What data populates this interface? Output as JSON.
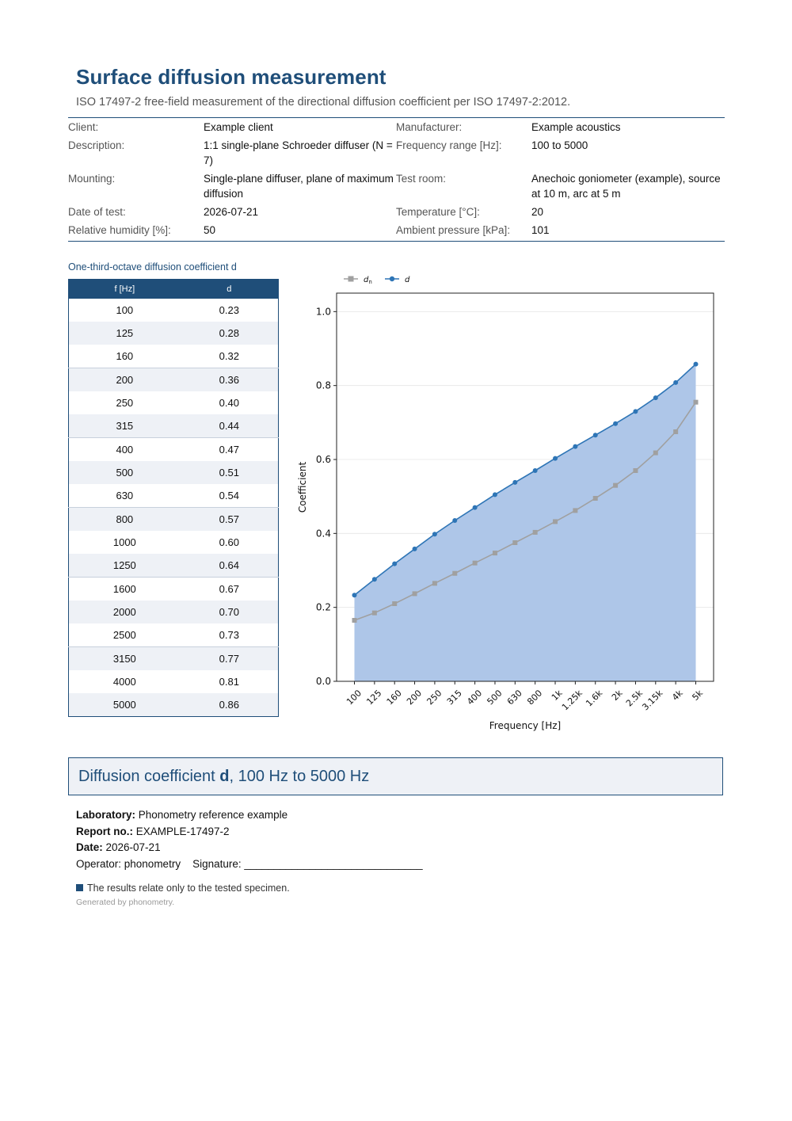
{
  "header": {
    "title": "Surface diffusion measurement",
    "subtitle": "ISO 17497-2 free-field measurement of the directional diffusion coefficient per ISO 17497-2:2012."
  },
  "meta": [
    {
      "k1": "Client:",
      "v1": "Example client",
      "k2": "Manufacturer:",
      "v2": "Example acoustics"
    },
    {
      "k1": "Description:",
      "v1": "1:1 single-plane Schroeder diffuser (N = 7)",
      "k2": "Frequency range [Hz]:",
      "v2": "100 to 5000"
    },
    {
      "k1": "Mounting:",
      "v1": "Single-plane diffuser, plane of maximum diffusion",
      "k2": "Test room:",
      "v2": "Anechoic goniometer (example), source at 10 m, arc at 5 m"
    },
    {
      "k1": "Date of test:",
      "v1": "2026-07-21",
      "k2": "Temperature [°C]:",
      "v2": "20"
    },
    {
      "k1": "Relative humidity [%]:",
      "v1": "50",
      "k2": "Ambient pressure [kPa]:",
      "v2": "101"
    }
  ],
  "table": {
    "caption": "One-third-octave diffusion coefficient d",
    "col_f": "f [Hz]",
    "col_d": "d",
    "rows": [
      {
        "f": "100",
        "d": "0.23"
      },
      {
        "f": "125",
        "d": "0.28"
      },
      {
        "f": "160",
        "d": "0.32"
      },
      {
        "f": "200",
        "d": "0.36"
      },
      {
        "f": "250",
        "d": "0.40"
      },
      {
        "f": "315",
        "d": "0.44"
      },
      {
        "f": "400",
        "d": "0.47"
      },
      {
        "f": "500",
        "d": "0.51"
      },
      {
        "f": "630",
        "d": "0.54"
      },
      {
        "f": "800",
        "d": "0.57"
      },
      {
        "f": "1000",
        "d": "0.60"
      },
      {
        "f": "1250",
        "d": "0.64"
      },
      {
        "f": "1600",
        "d": "0.67"
      },
      {
        "f": "2000",
        "d": "0.70"
      },
      {
        "f": "2500",
        "d": "0.73"
      },
      {
        "f": "3150",
        "d": "0.77"
      },
      {
        "f": "4000",
        "d": "0.81"
      },
      {
        "f": "5000",
        "d": "0.86"
      }
    ]
  },
  "chart_data": {
    "type": "line",
    "x": [
      100,
      125,
      160,
      200,
      250,
      315,
      400,
      500,
      630,
      800,
      1000,
      1250,
      1600,
      2000,
      2500,
      3150,
      4000,
      5000
    ],
    "tick_labels": [
      "100",
      "125",
      "160",
      "200",
      "250",
      "315",
      "400",
      "500",
      "630",
      "800",
      "1k",
      "1.25k",
      "1.6k",
      "2k",
      "2.5k",
      "3.15k",
      "4k",
      "5k"
    ],
    "series": [
      {
        "name": "dn",
        "color": "#a0a0a0",
        "marker": "square",
        "values": [
          0.165,
          0.185,
          0.21,
          0.237,
          0.265,
          0.292,
          0.32,
          0.347,
          0.375,
          0.403,
          0.432,
          0.462,
          0.495,
          0.53,
          0.57,
          0.618,
          0.675,
          0.755
        ]
      },
      {
        "name": "d",
        "color": "#2e75b6",
        "marker": "circle",
        "values": [
          0.233,
          0.276,
          0.318,
          0.358,
          0.398,
          0.435,
          0.47,
          0.505,
          0.538,
          0.57,
          0.603,
          0.635,
          0.666,
          0.697,
          0.73,
          0.767,
          0.808,
          0.858
        ]
      }
    ],
    "area_fill": "#aec6e8",
    "xlabel": "Frequency [Hz]",
    "ylabel": "Coefficient",
    "ylim": [
      0,
      1.05
    ],
    "yticks": [
      "0.0",
      "0.2",
      "0.4",
      "0.6",
      "0.8",
      "1.0"
    ],
    "grid": true,
    "legend_position": "top-left"
  },
  "result": {
    "prefix": "Diffusion coefficient ",
    "symbol": "d",
    "suffix": ", 100 Hz to 5000 Hz"
  },
  "signature": {
    "lab_label": "Laboratory:",
    "lab_value": " Phonometry reference example",
    "report_label": "Report no.:",
    "report_value": " EXAMPLE-17497-2",
    "date_label": "Date:",
    "date_value": " 2026-07-21",
    "operator_line": "Operator: phonometry    Signature: ______________________________"
  },
  "footer": {
    "note": "The results relate only to the tested specimen.",
    "generated": "Generated by phonometry."
  }
}
